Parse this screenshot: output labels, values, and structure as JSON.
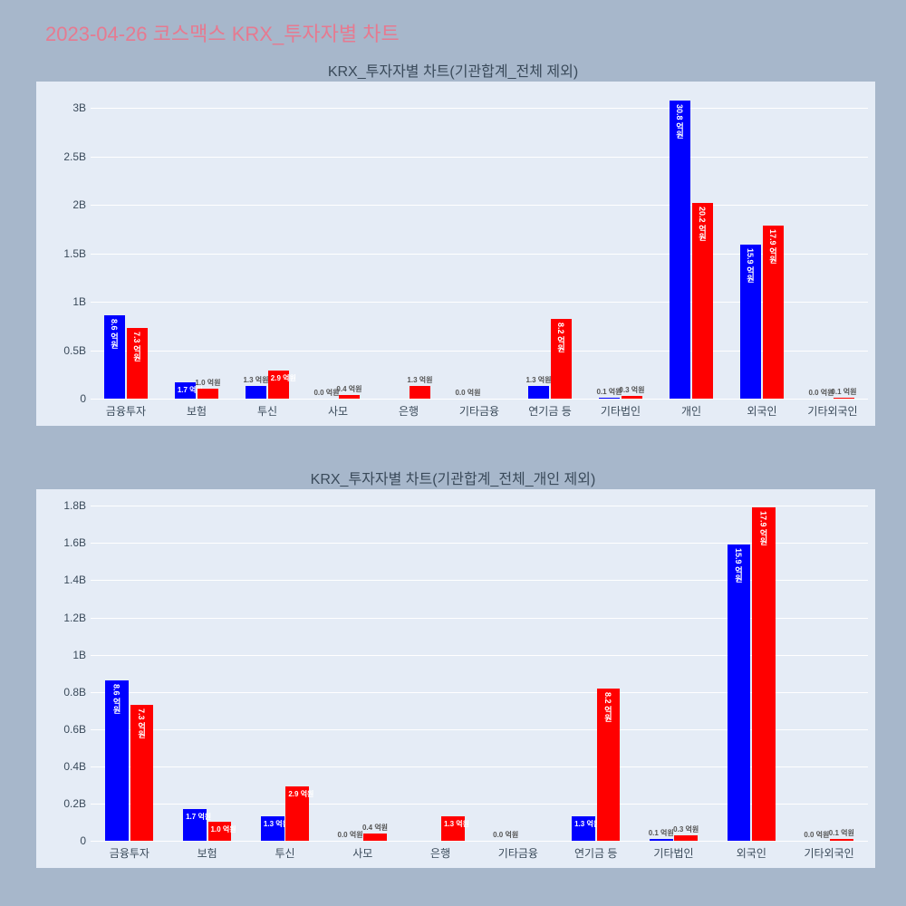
{
  "main_title": "2023-04-26 코스맥스 KRX_투자자별 차트",
  "colors": {
    "page_bg": "#a7b7cb",
    "panel_bg": "#e5ecf6",
    "grid": "#ffffff",
    "title": "#e67a90",
    "axis_text": "#3a4a5a",
    "bar_a": "#0000ff",
    "bar_b": "#ff0000"
  },
  "chart1": {
    "title": "KRX_투자자별 차트(기관합계_전체 제외)",
    "ylim": [
      0,
      3.2
    ],
    "yticks": [
      0,
      0.5,
      1,
      1.5,
      2,
      2.5,
      3
    ],
    "ytick_labels": [
      "0",
      "0.5B",
      "1B",
      "1.5B",
      "2B",
      "2.5B",
      "3B"
    ],
    "categories": [
      "금융투자",
      "보험",
      "투신",
      "사모",
      "은행",
      "기타금융",
      "연기금 등",
      "기타법인",
      "개인",
      "외국인",
      "기타외국인"
    ],
    "series_a": [
      0.86,
      0.17,
      0.13,
      0.0,
      0.0,
      0.0,
      0.13,
      0.01,
      3.08,
      1.59,
      0.0
    ],
    "series_b": [
      0.73,
      0.1,
      0.29,
      0.04,
      0.13,
      0.0,
      0.82,
      0.03,
      2.02,
      1.79,
      0.01
    ],
    "labels_a": [
      "8.6 억원",
      "1.7 억원",
      "1.3 억원",
      "0.0 억원",
      "",
      "0.0 억원",
      "1.3 억원",
      "0.1 억원",
      "30.8 억원",
      "15.9 억원",
      "0.0 억원"
    ],
    "labels_b": [
      "7.3 억원",
      "1.0 억원",
      "2.9 억원",
      "0.4 억원",
      "1.3 억원",
      "",
      "8.2 억원",
      "0.3 억원",
      "20.2 억원",
      "17.9 억원",
      "0.1 억원"
    ]
  },
  "chart2": {
    "title": "KRX_투자자별 차트(기관합계_전체_개인 제외)",
    "ylim": [
      0,
      1.85
    ],
    "yticks": [
      0,
      0.2,
      0.4,
      0.6,
      0.8,
      1.0,
      1.2,
      1.4,
      1.6,
      1.8
    ],
    "ytick_labels": [
      "0",
      "0.2B",
      "0.4B",
      "0.6B",
      "0.8B",
      "1B",
      "1.2B",
      "1.4B",
      "1.6B",
      "1.8B"
    ],
    "categories": [
      "금융투자",
      "보험",
      "투신",
      "사모",
      "은행",
      "기타금융",
      "연기금 등",
      "기타법인",
      "외국인",
      "기타외국인"
    ],
    "series_a": [
      0.86,
      0.17,
      0.13,
      0.0,
      0.0,
      0.0,
      0.13,
      0.01,
      1.59,
      0.0
    ],
    "series_b": [
      0.73,
      0.1,
      0.29,
      0.04,
      0.13,
      0.0,
      0.82,
      0.03,
      1.79,
      0.01
    ],
    "labels_a": [
      "8.6 억원",
      "1.7 억원",
      "1.3 억원",
      "0.0 억원",
      "",
      "0.0 억원",
      "1.3 억원",
      "0.1 억원",
      "15.9 억원",
      "0.0 억원"
    ],
    "labels_b": [
      "7.3 억원",
      "1.0 억원",
      "2.9 억원",
      "0.4 억원",
      "1.3 억원",
      "",
      "8.2 억원",
      "0.3 억원",
      "17.9 억원",
      "0.1 억원"
    ]
  }
}
